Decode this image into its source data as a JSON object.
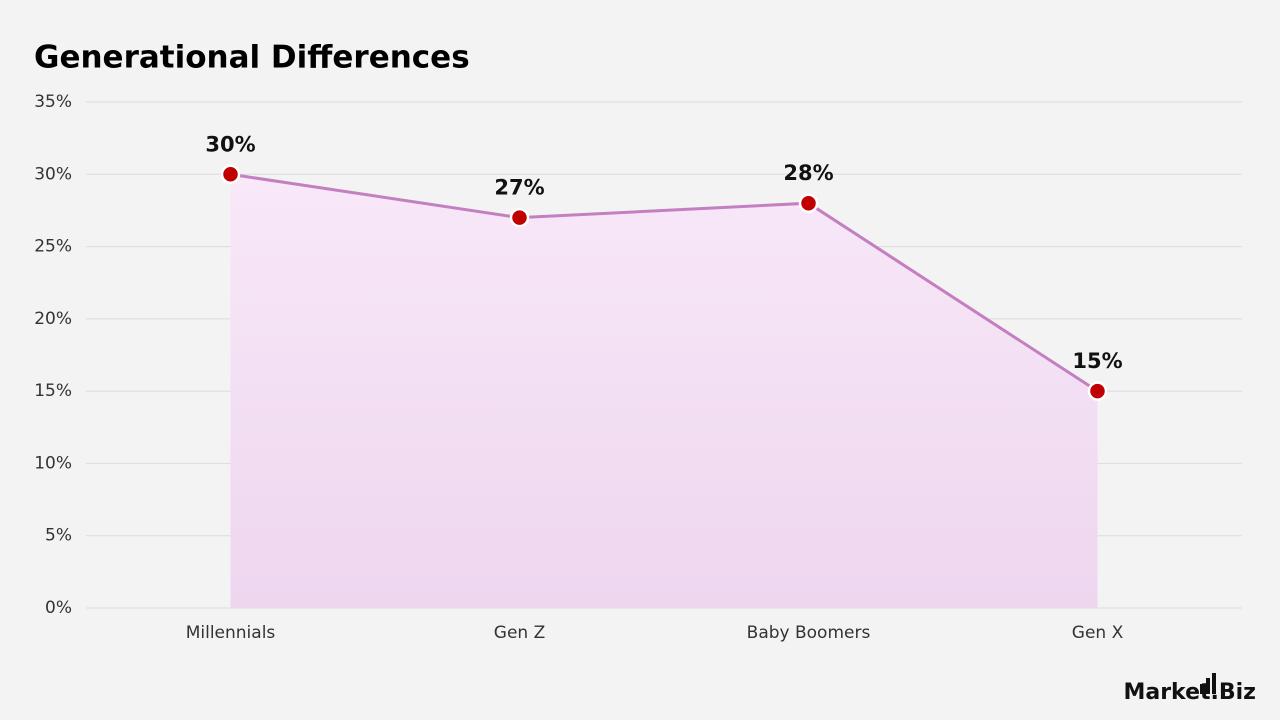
{
  "chart_data": {
    "type": "area",
    "title": "Generational Differences",
    "categories": [
      "Millennials",
      "Gen Z",
      "Baby Boomers",
      "Gen X"
    ],
    "values": [
      30,
      27,
      28,
      15
    ],
    "value_labels": [
      "30%",
      "27%",
      "28%",
      "15%"
    ],
    "color": "#c47fc1",
    "marker_color": "#c00000",
    "ylim": [
      0,
      35
    ],
    "yticks": [
      {
        "value": 0,
        "label": "0%"
      },
      {
        "value": 5,
        "label": "5%"
      },
      {
        "value": 10,
        "label": "10%"
      },
      {
        "value": 15,
        "label": "15%"
      },
      {
        "value": 20,
        "label": "20%"
      },
      {
        "value": 25,
        "label": "25%"
      },
      {
        "value": 30,
        "label": "30%"
      },
      {
        "value": 35,
        "label": "35%"
      }
    ],
    "grid": true
  },
  "logo": "Market.Biz"
}
